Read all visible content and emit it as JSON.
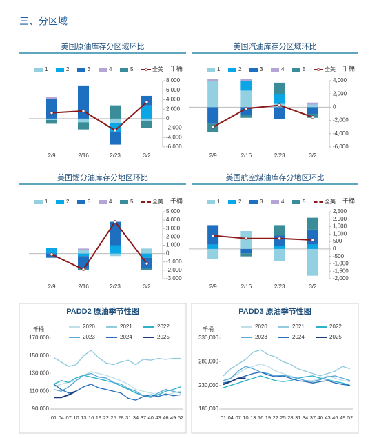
{
  "header": {
    "title": "三、分区域"
  },
  "chart_data": [
    {
      "type": "bar",
      "stacked": true,
      "title": "美国原油库存分区域环比",
      "unit": "千桶",
      "categories": [
        "2/9",
        "2/16",
        "2/23",
        "3/2"
      ],
      "series": [
        {
          "name": "1",
          "color": "#92d0e2",
          "values": [
            -300,
            -800,
            -1000,
            -500
          ]
        },
        {
          "name": "2",
          "color": "#0aa6e6",
          "values": [
            0,
            0,
            -1800,
            2800
          ]
        },
        {
          "name": "3",
          "color": "#1e6fc0",
          "values": [
            4200,
            7000,
            -2700,
            2000
          ]
        },
        {
          "name": "4",
          "color": "#b3a6d6",
          "values": [
            300,
            0,
            0,
            0
          ]
        },
        {
          "name": "5",
          "color": "#3a8c98",
          "values": [
            -800,
            -1500,
            2800,
            -1500
          ]
        },
        {
          "name": "全美",
          "type": "line",
          "color": "#8b1a1a",
          "values": [
            1200,
            1600,
            -2500,
            3500
          ]
        }
      ],
      "ylim": [
        -6000,
        8000
      ],
      "yticks": [
        {
          "value": 8000,
          "label": "8,000"
        },
        {
          "value": 6000,
          "label": "6,000"
        },
        {
          "value": 4000,
          "label": "4,000"
        },
        {
          "value": 2000,
          "label": "2,000"
        },
        0,
        {
          "value": -2000,
          "label": "-2,000"
        },
        {
          "value": -4000,
          "label": "-4,000"
        },
        {
          "value": -6000,
          "label": "-6,000"
        }
      ]
    },
    {
      "type": "bar",
      "stacked": true,
      "title": "美国汽油库存分区域环比",
      "unit": "千桶",
      "categories": [
        "2/9",
        "2/16",
        "2/23",
        "3/2"
      ],
      "series": [
        {
          "name": "1",
          "color": "#92d0e2",
          "values": [
            4000,
            2500,
            500,
            400
          ]
        },
        {
          "name": "2",
          "color": "#0aa6e6",
          "values": [
            0,
            1500,
            1500,
            0
          ]
        },
        {
          "name": "3",
          "color": "#1e6fc0",
          "values": [
            -2500,
            -1200,
            -1800,
            -1000
          ]
        },
        {
          "name": "4",
          "color": "#b3a6d6",
          "values": [
            300,
            300,
            0,
            300
          ]
        },
        {
          "name": "5",
          "color": "#3a8c98",
          "values": [
            -1300,
            -400,
            1700,
            -600
          ]
        },
        {
          "name": "全美",
          "type": "line",
          "color": "#8b1a1a",
          "values": [
            -3000,
            -200,
            300,
            -1500
          ]
        }
      ],
      "ylim": [
        -6000,
        4000
      ],
      "yticks": [
        {
          "value": 4000,
          "label": "4,000"
        },
        {
          "value": 2000,
          "label": "2,000"
        },
        0,
        {
          "value": -2000,
          "label": "-2,000"
        },
        {
          "value": -4000,
          "label": "-4,000"
        },
        {
          "value": -6000,
          "label": "-6,000"
        }
      ]
    },
    {
      "type": "bar",
      "stacked": true,
      "title": "美国馏分油库存分地区环比",
      "unit": "千桶",
      "categories": [
        "2/9",
        "2/16",
        "2/23",
        "3/2"
      ],
      "series": [
        {
          "name": "1",
          "color": "#92d0e2",
          "values": [
            0,
            400,
            -300,
            600
          ]
        },
        {
          "name": "2",
          "color": "#0aa6e6",
          "values": [
            700,
            -300,
            1000,
            -500
          ]
        },
        {
          "name": "3",
          "color": "#1e6fc0",
          "values": [
            -500,
            -1500,
            2800,
            -1300
          ]
        },
        {
          "name": "4",
          "color": "#b3a6d6",
          "values": [
            0,
            200,
            0,
            0
          ]
        },
        {
          "name": "5",
          "color": "#3a8c98",
          "values": [
            0,
            -200,
            0,
            -200
          ]
        },
        {
          "name": "全美",
          "type": "line",
          "color": "#8b1a1a",
          "values": [
            -100,
            -1900,
            3800,
            -1200
          ]
        }
      ],
      "ylim": [
        -3000,
        5000
      ],
      "yticks": [
        {
          "value": 5000,
          "label": "5,000"
        },
        {
          "value": 4000,
          "label": "4,000"
        },
        {
          "value": 3000,
          "label": "3,000"
        },
        {
          "value": 2000,
          "label": "2,000"
        },
        {
          "value": 1000,
          "label": "1,000"
        },
        0,
        {
          "value": -1000,
          "label": "-1,000"
        },
        {
          "value": -2000,
          "label": "-2,000"
        },
        {
          "value": -3000,
          "label": "-3,000"
        }
      ]
    },
    {
      "type": "bar",
      "stacked": true,
      "title": "美国航空煤油库存分地区环比",
      "unit": "千桶",
      "categories": [
        "2/9",
        "2/16",
        "2/23",
        "3/2"
      ],
      "series": [
        {
          "name": "1",
          "color": "#92d0e2",
          "values": [
            -700,
            1200,
            -800,
            -1800
          ]
        },
        {
          "name": "2",
          "color": "#0aa6e6",
          "values": [
            300,
            0,
            200,
            300
          ]
        },
        {
          "name": "3",
          "color": "#1e6fc0",
          "values": [
            1300,
            -300,
            700,
            1000
          ]
        },
        {
          "name": "4",
          "color": "#b3a6d6",
          "values": [
            0,
            0,
            0,
            0
          ]
        },
        {
          "name": "5",
          "color": "#3a8c98",
          "values": [
            0,
            -200,
            700,
            800
          ]
        },
        {
          "name": "全美",
          "type": "line",
          "color": "#8b1a1a",
          "values": [
            900,
            700,
            700,
            600
          ]
        }
      ],
      "ylim": [
        -2000,
        2500
      ],
      "yticks": [
        {
          "value": 2500,
          "label": "2,500"
        },
        {
          "value": 2000,
          "label": "2,000"
        },
        {
          "value": 1500,
          "label": "1,500"
        },
        {
          "value": 1000,
          "label": "1,000"
        },
        500,
        0,
        -500,
        {
          "value": -1000,
          "label": "-1,000"
        },
        {
          "value": -1500,
          "label": "-1,500"
        },
        {
          "value": -2000,
          "label": "-2,000"
        }
      ]
    },
    {
      "type": "line",
      "title": "PADD2 原油季节性图",
      "y_label": "千桶",
      "categories": [
        "01",
        "04",
        "07",
        "10",
        "13",
        "16",
        "19",
        "22",
        "25",
        "28",
        "31",
        "34",
        "37",
        "40",
        "43",
        "46",
        "49",
        "52"
      ],
      "series": [
        {
          "name": "2020",
          "color": "#bfe0ea",
          "values": [
            115000,
            118000,
            120000,
            122000,
            128000,
            132000,
            130000,
            128000,
            125000,
            122000,
            118000,
            112000,
            110000,
            108000,
            106000,
            105000,
            108000,
            110000
          ]
        },
        {
          "name": "2021",
          "color": "#92cbe0",
          "values": [
            148000,
            143000,
            138000,
            140000,
            150000,
            156000,
            148000,
            142000,
            140000,
            143000,
            145000,
            140000,
            146000,
            145000,
            147000,
            146000,
            147000,
            147000
          ]
        },
        {
          "name": "2022",
          "color": "#2fb2c8",
          "values": [
            118000,
            122000,
            120000,
            125000,
            128000,
            126000,
            124000,
            122000,
            120000,
            116000,
            112000,
            108000,
            105000,
            104000,
            106000,
            110000,
            112000,
            115000
          ]
        },
        {
          "name": "2023",
          "color": "#5aa8d8",
          "values": [
            112000,
            110000,
            115000,
            122000,
            128000,
            130000,
            126000,
            125000,
            120000,
            118000,
            113000,
            110000,
            105000,
            103000,
            108000,
            112000,
            110000,
            108000
          ]
        },
        {
          "name": "2024",
          "color": "#2a6fb8",
          "values": [
            118000,
            112000,
            108000,
            110000,
            115000,
            118000,
            114000,
            112000,
            110000,
            108000,
            102000,
            100000,
            104000,
            106000,
            104000,
            107000,
            105000,
            106000
          ]
        },
        {
          "name": "2025",
          "color": "#1a3a7a",
          "values": [
            103000,
            103000,
            106000,
            110000,
            null,
            null,
            null,
            null,
            null,
            null,
            null,
            null,
            null,
            null,
            null,
            null,
            null,
            null
          ]
        }
      ],
      "ylim": [
        90000,
        170000
      ],
      "yticks": [
        {
          "value": 90000,
          "label": "90,000"
        },
        {
          "value": 110000,
          "label": "110,000"
        },
        {
          "value": 130000,
          "label": "130,000"
        },
        {
          "value": 150000,
          "label": "150,000"
        },
        {
          "value": 170000,
          "label": "170,000"
        }
      ]
    },
    {
      "type": "line",
      "title": "PADD3 原油季节性图",
      "y_label": "千桶",
      "categories": [
        "01",
        "04",
        "07",
        "10",
        "13",
        "16",
        "19",
        "22",
        "25",
        "28",
        "31",
        "34",
        "37",
        "40",
        "43",
        "46",
        "49",
        "52"
      ],
      "series": [
        {
          "name": "2020",
          "color": "#bfe0ea",
          "values": [
            235000,
            245000,
            255000,
            265000,
            270000,
            275000,
            270000,
            260000,
            255000,
            250000,
            245000,
            240000,
            240000,
            245000,
            250000,
            245000,
            240000,
            238000
          ]
        },
        {
          "name": "2021",
          "color": "#92cbe0",
          "values": [
            250000,
            265000,
            275000,
            285000,
            300000,
            305000,
            295000,
            290000,
            280000,
            275000,
            265000,
            260000,
            255000,
            250000,
            255000,
            260000,
            270000,
            265000
          ]
        },
        {
          "name": "2022",
          "color": "#2fb2c8",
          "values": [
            225000,
            230000,
            235000,
            240000,
            245000,
            250000,
            245000,
            240000,
            238000,
            240000,
            245000,
            248000,
            250000,
            245000,
            242000,
            238000,
            235000,
            230000
          ]
        },
        {
          "name": "2023",
          "color": "#5aa8d8",
          "values": [
            240000,
            245000,
            260000,
            270000,
            265000,
            258000,
            255000,
            250000,
            252000,
            248000,
            245000,
            240000,
            238000,
            242000,
            248000,
            250000,
            245000,
            240000
          ]
        },
        {
          "name": "2024",
          "color": "#2a6fb8",
          "values": [
            235000,
            238000,
            245000,
            250000,
            255000,
            258000,
            252000,
            248000,
            250000,
            245000,
            240000,
            238000,
            235000,
            238000,
            240000,
            235000,
            232000,
            230000
          ]
        },
        {
          "name": "2025",
          "color": "#1a3a7a",
          "values": [
            232000,
            238000,
            245000,
            245000,
            null,
            null,
            null,
            null,
            null,
            null,
            null,
            null,
            null,
            null,
            null,
            null,
            null,
            null
          ]
        }
      ],
      "ylim": [
        180000,
        330000
      ],
      "yticks": [
        {
          "value": 180000,
          "label": "180,000"
        },
        {
          "value": 230000,
          "label": "230,000"
        },
        {
          "value": 280000,
          "label": "280,000"
        },
        {
          "value": 330000,
          "label": "330,000"
        }
      ]
    }
  ]
}
